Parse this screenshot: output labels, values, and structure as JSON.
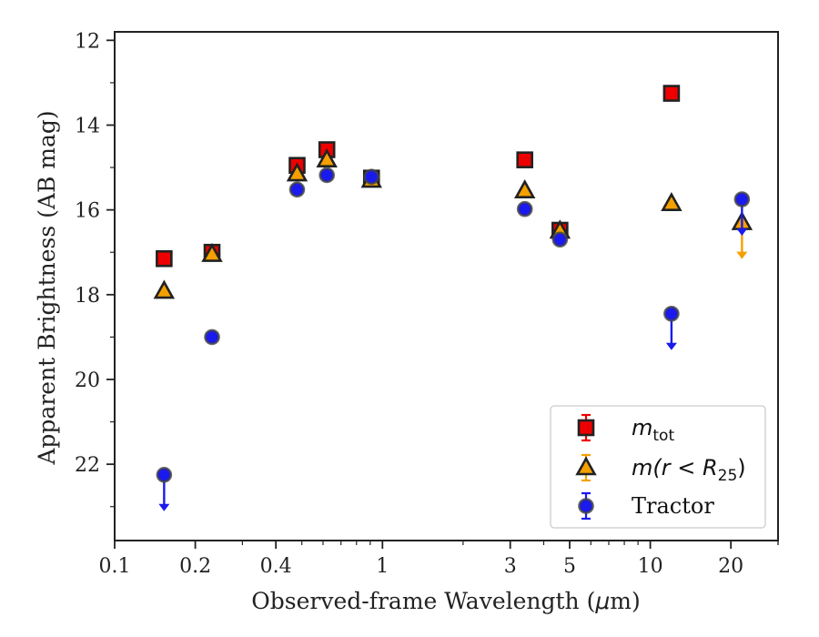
{
  "chart_data": {
    "type": "scatter",
    "xlabel_pre": "Observed-frame Wavelength (",
    "xlabel_mu": "μ",
    "xlabel_post": "m)",
    "ylabel": "Apparent Brightness (AB mag)",
    "xscale": "log",
    "xlim": [
      0.1,
      30
    ],
    "ylim": [
      23.8,
      11.8
    ],
    "y_inverted": true,
    "grid": false,
    "legend_position": "bottom-right",
    "x_major_ticks": [
      {
        "value": 0.1,
        "label": "0.1"
      },
      {
        "value": 0.2,
        "label": "0.2"
      },
      {
        "value": 0.4,
        "label": "0.4"
      },
      {
        "value": 1,
        "label": "1"
      },
      {
        "value": 3,
        "label": "3"
      },
      {
        "value": 5,
        "label": "5"
      },
      {
        "value": 10,
        "label": "10"
      },
      {
        "value": 20,
        "label": "20"
      }
    ],
    "y_major_ticks": [
      {
        "value": 12,
        "label": "12"
      },
      {
        "value": 14,
        "label": "14"
      },
      {
        "value": 16,
        "label": "16"
      },
      {
        "value": 18,
        "label": "18"
      },
      {
        "value": 20,
        "label": "20"
      },
      {
        "value": 22,
        "label": "22"
      }
    ],
    "series": [
      {
        "id": "mtot",
        "marker": "square",
        "color": "#ee0000",
        "legend_main": "m",
        "legend_sub": "tot",
        "legend_rest": "",
        "points": [
          {
            "x": 0.153,
            "y": 17.15
          },
          {
            "x": 0.231,
            "y": 17.0
          },
          {
            "x": 0.48,
            "y": 14.95
          },
          {
            "x": 0.62,
            "y": 14.58
          },
          {
            "x": 0.91,
            "y": 15.25
          },
          {
            "x": 3.4,
            "y": 14.82
          },
          {
            "x": 4.6,
            "y": 16.48
          },
          {
            "x": 12.0,
            "y": 13.25
          }
        ]
      },
      {
        "id": "mr25",
        "marker": "triangle",
        "color": "#f5a000",
        "legend_main": "m(r < R",
        "legend_sub": "25",
        "legend_rest": ")",
        "points": [
          {
            "x": 0.153,
            "y": 17.92
          },
          {
            "x": 0.231,
            "y": 17.05
          },
          {
            "x": 0.48,
            "y": 15.15
          },
          {
            "x": 0.62,
            "y": 14.82
          },
          {
            "x": 0.91,
            "y": 15.3
          },
          {
            "x": 3.4,
            "y": 15.55
          },
          {
            "x": 4.6,
            "y": 16.5
          },
          {
            "x": 12.0,
            "y": 15.85
          },
          {
            "x": 22.0,
            "y": 16.3,
            "upper_limit": true
          }
        ]
      },
      {
        "id": "tractor",
        "marker": "circle",
        "color": "#1a1aee",
        "legend_main": "Tractor",
        "legend_sub": "",
        "legend_rest": "",
        "points": [
          {
            "x": 0.153,
            "y": 22.25,
            "upper_limit": true
          },
          {
            "x": 0.231,
            "y": 19.0
          },
          {
            "x": 0.48,
            "y": 15.52
          },
          {
            "x": 0.62,
            "y": 15.18
          },
          {
            "x": 0.91,
            "y": 15.22
          },
          {
            "x": 3.4,
            "y": 15.98
          },
          {
            "x": 4.6,
            "y": 16.7
          },
          {
            "x": 12.0,
            "y": 18.45,
            "upper_limit": true
          },
          {
            "x": 22.0,
            "y": 15.75,
            "upper_limit": true
          }
        ]
      }
    ]
  }
}
